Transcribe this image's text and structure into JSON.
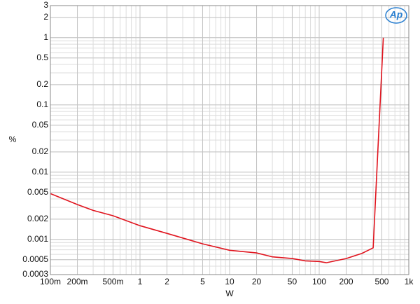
{
  "chart_data": {
    "type": "line",
    "x_label": "W",
    "y_label": "%",
    "logo": "Ap",
    "xscale": "log",
    "yscale": "log",
    "grid": true,
    "minor_grid": true,
    "xlim": [
      0.1,
      1000
    ],
    "xticks": [
      {
        "value": 0.1,
        "label": "100m"
      },
      {
        "value": 0.2,
        "label": "200m"
      },
      {
        "value": 0.5,
        "label": "500m"
      },
      1,
      2,
      5,
      10,
      20,
      50,
      100,
      200,
      500,
      {
        "value": 1000,
        "label": "1k"
      }
    ],
    "ylim": [
      0.0003,
      3
    ],
    "yticks": [
      0.0003,
      0.0005,
      0.001,
      0.002,
      0.005,
      0.01,
      0.02,
      0.05,
      0.1,
      0.2,
      0.5,
      1,
      2,
      3
    ],
    "x": [
      0.1,
      0.2,
      0.3,
      0.5,
      1,
      2,
      3,
      5,
      10,
      20,
      30,
      50,
      70,
      100,
      120,
      200,
      300,
      400,
      520
    ],
    "series": [
      {
        "color": "#e0141e",
        "values": [
          0.0048,
          0.0033,
          0.0027,
          0.00225,
          0.0016,
          0.00123,
          0.00105,
          0.00086,
          0.00069,
          0.00063,
          0.00055,
          0.00052,
          0.00048,
          0.00047,
          0.00045,
          0.00052,
          0.00062,
          0.00075,
          1.0
        ]
      }
    ]
  }
}
